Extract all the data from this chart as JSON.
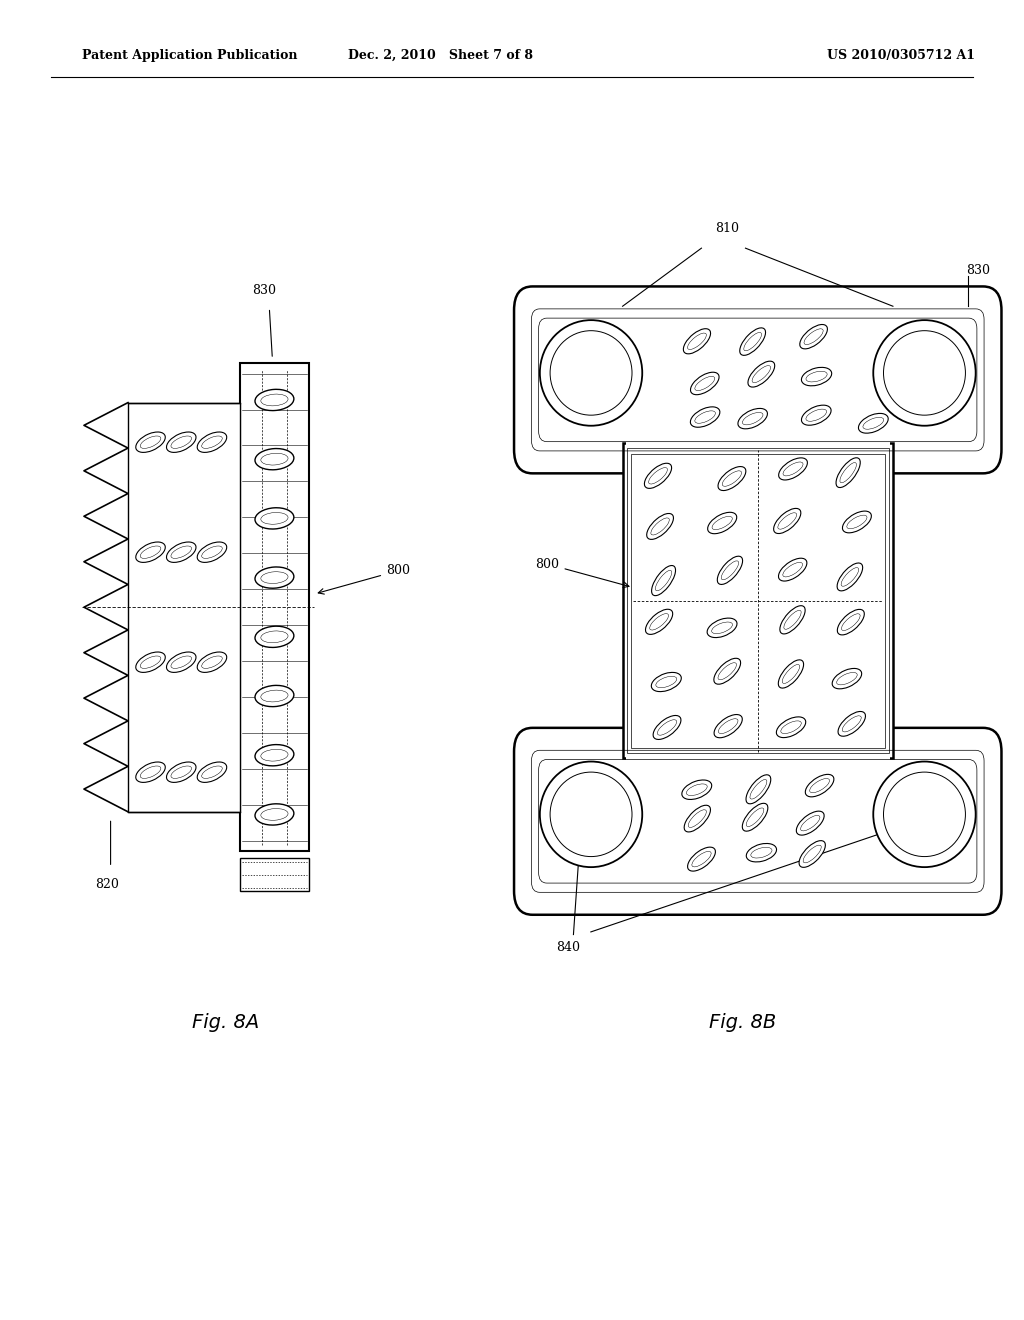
{
  "bg_color": "#ffffff",
  "header_left": "Patent Application Publication",
  "header_mid": "Dec. 2, 2010   Sheet 7 of 8",
  "header_right": "US 2010/0305712 A1",
  "fig_label_A": "Fig. 8A",
  "fig_label_B": "Fig. 8B"
}
